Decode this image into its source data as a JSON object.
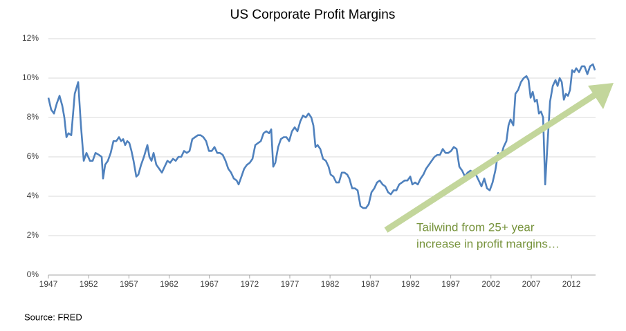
{
  "chart_data": {
    "type": "line",
    "title": "US Corporate Profit Margins",
    "x": [
      1947.0,
      1947.34,
      1947.69,
      1948.03,
      1948.38,
      1948.72,
      1948.98,
      1949.24,
      1949.49,
      1949.84,
      1950.27,
      1950.7,
      1951.04,
      1951.39,
      1951.73,
      1952.16,
      1952.5,
      1952.85,
      1953.28,
      1953.62,
      1953.79,
      1954.05,
      1954.39,
      1954.74,
      1955.08,
      1955.43,
      1955.77,
      1956.03,
      1956.29,
      1956.54,
      1956.8,
      1957.06,
      1957.32,
      1957.58,
      1957.92,
      1958.18,
      1958.52,
      1958.87,
      1959.3,
      1959.55,
      1959.81,
      1960.07,
      1960.41,
      1960.76,
      1961.1,
      1961.44,
      1961.79,
      1962.13,
      1962.48,
      1962.82,
      1963.16,
      1963.51,
      1963.85,
      1964.2,
      1964.54,
      1964.88,
      1965.23,
      1965.57,
      1965.92,
      1966.26,
      1966.6,
      1966.95,
      1967.29,
      1967.64,
      1967.98,
      1968.32,
      1968.67,
      1969.01,
      1969.35,
      1969.7,
      1970.04,
      1970.39,
      1970.64,
      1970.99,
      1971.33,
      1971.68,
      1972.02,
      1972.36,
      1972.71,
      1973.05,
      1973.4,
      1973.74,
      1974.08,
      1974.43,
      1974.69,
      1974.94,
      1975.2,
      1975.55,
      1975.89,
      1976.23,
      1976.58,
      1976.92,
      1977.27,
      1977.61,
      1977.95,
      1978.3,
      1978.64,
      1978.98,
      1979.33,
      1979.67,
      1979.93,
      1980.19,
      1980.45,
      1980.79,
      1981.13,
      1981.48,
      1981.82,
      1982.08,
      1982.42,
      1982.77,
      1983.11,
      1983.46,
      1983.8,
      1984.14,
      1984.4,
      1984.75,
      1985.09,
      1985.43,
      1985.78,
      1986.12,
      1986.46,
      1986.81,
      1987.15,
      1987.5,
      1987.84,
      1988.18,
      1988.53,
      1988.87,
      1989.22,
      1989.56,
      1989.9,
      1990.25,
      1990.59,
      1990.94,
      1991.28,
      1991.62,
      1991.97,
      1992.23,
      1992.57,
      1992.91,
      1993.26,
      1993.6,
      1993.94,
      1994.29,
      1994.63,
      1994.98,
      1995.32,
      1995.66,
      1996.01,
      1996.35,
      1996.7,
      1997.04,
      1997.38,
      1997.73,
      1998.07,
      1998.42,
      1998.76,
      1999.1,
      1999.45,
      1999.79,
      2000.13,
      2000.48,
      2000.82,
      2001.17,
      2001.51,
      2001.85,
      2002.2,
      2002.54,
      2002.89,
      2003.23,
      2003.57,
      2003.92,
      2004.18,
      2004.43,
      2004.78,
      2005.04,
      2005.38,
      2005.73,
      2006.07,
      2006.41,
      2006.67,
      2006.93,
      2007.19,
      2007.45,
      2007.71,
      2007.96,
      2008.22,
      2008.48,
      2008.74,
      2008.99,
      2009.34,
      2009.68,
      2010.02,
      2010.28,
      2010.54,
      2010.8,
      2011.06,
      2011.31,
      2011.57,
      2011.83,
      2012.09,
      2012.35,
      2012.6,
      2012.95,
      2013.29,
      2013.63,
      2013.98,
      2014.32,
      2014.67,
      2014.92
    ],
    "values": [
      9.0,
      8.4,
      8.2,
      8.7,
      9.1,
      8.6,
      8.0,
      7.0,
      7.2,
      7.1,
      9.2,
      9.8,
      7.6,
      5.8,
      6.2,
      5.8,
      5.8,
      6.2,
      6.1,
      6.0,
      4.9,
      5.6,
      5.8,
      6.2,
      6.8,
      6.8,
      7.0,
      6.8,
      6.9,
      6.6,
      6.8,
      6.7,
      6.3,
      5.8,
      5.0,
      5.1,
      5.6,
      6.0,
      6.6,
      6.0,
      5.8,
      6.2,
      5.6,
      5.4,
      5.2,
      5.5,
      5.8,
      5.7,
      5.9,
      5.8,
      6.0,
      6.0,
      6.3,
      6.2,
      6.3,
      6.9,
      7.0,
      7.1,
      7.1,
      7.0,
      6.8,
      6.3,
      6.3,
      6.5,
      6.2,
      6.2,
      6.1,
      5.8,
      5.4,
      5.2,
      4.9,
      4.8,
      4.6,
      5.0,
      5.4,
      5.6,
      5.7,
      5.9,
      6.6,
      6.7,
      6.8,
      7.2,
      7.3,
      7.2,
      7.4,
      5.5,
      5.7,
      6.5,
      6.9,
      7.0,
      7.0,
      6.8,
      7.3,
      7.5,
      7.3,
      7.8,
      8.1,
      8.0,
      8.2,
      8.0,
      7.6,
      6.5,
      6.6,
      6.4,
      5.9,
      5.8,
      5.5,
      5.1,
      5.0,
      4.7,
      4.7,
      5.2,
      5.2,
      5.1,
      4.9,
      4.4,
      4.4,
      4.3,
      3.5,
      3.4,
      3.4,
      3.6,
      4.2,
      4.4,
      4.7,
      4.8,
      4.6,
      4.5,
      4.2,
      4.1,
      4.3,
      4.3,
      4.6,
      4.7,
      4.8,
      4.8,
      5.0,
      4.6,
      4.7,
      4.6,
      4.9,
      5.1,
      5.4,
      5.6,
      5.8,
      6.0,
      6.1,
      6.1,
      6.4,
      6.2,
      6.2,
      6.3,
      6.5,
      6.4,
      5.5,
      5.3,
      5.0,
      5.2,
      5.3,
      5.2,
      5.1,
      4.8,
      4.5,
      4.9,
      4.4,
      4.3,
      4.7,
      5.3,
      6.2,
      6.0,
      6.5,
      6.8,
      7.6,
      7.9,
      7.6,
      9.2,
      9.4,
      9.8,
      10.0,
      10.1,
      9.9,
      9.0,
      9.3,
      8.8,
      8.9,
      8.2,
      8.3,
      8.0,
      4.6,
      6.4,
      8.8,
      9.6,
      9.9,
      9.6,
      10.0,
      9.8,
      8.9,
      9.2,
      9.1,
      9.4,
      10.4,
      10.3,
      10.5,
      10.3,
      10.6,
      10.6,
      10.2,
      10.6,
      10.7,
      10.4
    ],
    "color": "#4f81bd",
    "xlim": [
      1947,
      2015
    ],
    "xticks": [
      1947,
      1952,
      1957,
      1962,
      1967,
      1972,
      1977,
      1982,
      1987,
      1992,
      1997,
      2002,
      2007,
      2012
    ],
    "ylim": [
      0,
      12
    ],
    "yticks": [
      {
        "value": 0,
        "label": "0%"
      },
      {
        "value": 2,
        "label": "2%"
      },
      {
        "value": 4,
        "label": "4%"
      },
      {
        "value": 6,
        "label": "6%"
      },
      {
        "value": 8,
        "label": "8%"
      },
      {
        "value": 10,
        "label": "10%"
      },
      {
        "value": 12,
        "label": "12%"
      }
    ],
    "grid": true,
    "annotations": [
      "Tailwind from 25+ year",
      "increase in profit margins…"
    ],
    "source": "Source: FRED"
  }
}
